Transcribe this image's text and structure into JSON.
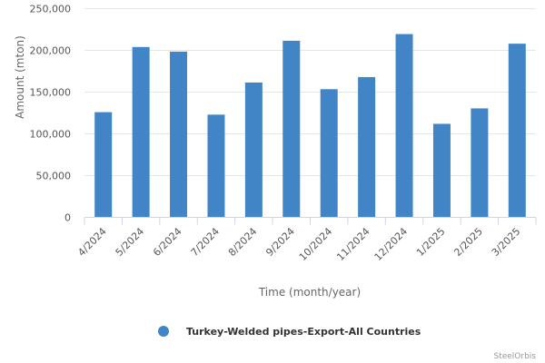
{
  "chart_data": {
    "type": "bar",
    "categories": [
      "4/2024",
      "5/2024",
      "6/2024",
      "7/2024",
      "8/2024",
      "9/2024",
      "10/2024",
      "11/2024",
      "12/2024",
      "1/2025",
      "2/2025",
      "3/2025"
    ],
    "series": [
      {
        "name": "Turkey-Welded pipes-Export-All Countries",
        "color": "#4185c6",
        "values": [
          126000,
          204000,
          198500,
          123000,
          161500,
          211500,
          153500,
          168000,
          219500,
          112000,
          130500,
          208000
        ]
      }
    ],
    "title": "",
    "xlabel": "Time (month/year)",
    "ylabel": "Amount (mton)",
    "ylim": [
      0,
      250000
    ],
    "yticks": [
      0,
      50000,
      100000,
      150000,
      200000,
      250000
    ],
    "ytick_labels": [
      "0",
      "50,000",
      "100,000",
      "150,000",
      "200,000",
      "250,000"
    ],
    "grid": true,
    "legend_position": "bottom-center"
  },
  "credit": "SteelOrbis"
}
